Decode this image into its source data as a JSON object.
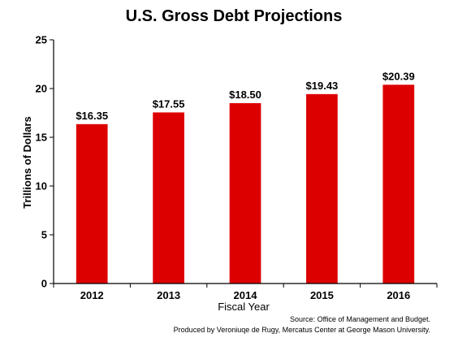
{
  "chart_data": {
    "type": "bar",
    "title": "U.S. Gross Debt Projections",
    "xlabel": "Fiscal Year",
    "ylabel": "Trillions of Dollars",
    "categories": [
      "2012",
      "2013",
      "2014",
      "2015",
      "2016"
    ],
    "values": [
      16.35,
      17.55,
      18.5,
      19.43,
      20.39
    ],
    "value_labels": [
      "$16.35",
      "$17.55",
      "$18.50",
      "$19.43",
      "$20.39"
    ],
    "ylim": [
      0,
      25
    ],
    "yticks": [
      "0",
      "5",
      "10",
      "15",
      "20",
      "25"
    ],
    "grid": false,
    "legend": "none",
    "bar_color": "#dd0000",
    "source_lines": [
      "Source: Office of Management and Budget.",
      "Produced by Veroniuqe de Rugy, Mercatus Center at George Mason University."
    ]
  }
}
